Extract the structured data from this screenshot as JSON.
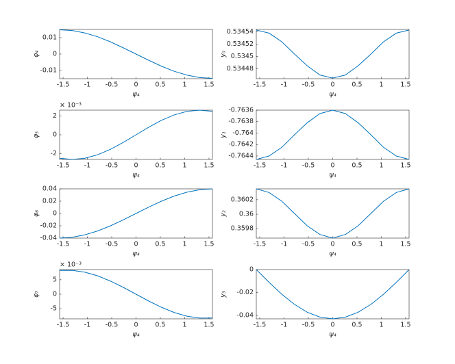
{
  "chart_data": [
    {
      "type": "line",
      "ylabel": "φ₄",
      "xlabel": "ψ₄",
      "color": "#0072bd",
      "x": [
        -1.5708,
        -1.309,
        -1.0472,
        -0.7854,
        -0.5236,
        -0.2618,
        0,
        0.2618,
        0.5236,
        0.7854,
        1.0472,
        1.309,
        1.5708
      ],
      "values": [
        0.0148,
        0.0143,
        0.0128,
        0.0105,
        0.0074,
        0.0038,
        0,
        -0.0038,
        -0.0074,
        -0.0105,
        -0.0128,
        -0.0143,
        -0.0148
      ],
      "xlim": [
        -1.5708,
        1.5708
      ],
      "xticks": [
        -1.5,
        -1,
        -0.5,
        0,
        0.5,
        1,
        1.5
      ],
      "ylim": [
        -0.015,
        0.015
      ],
      "yticks": [
        -0.01,
        0,
        0.01
      ]
    },
    {
      "type": "line",
      "ylabel": "y₀",
      "xlabel": "ψ₄",
      "color": "#0072bd",
      "x": [
        -1.5708,
        -1.309,
        -1.0472,
        -0.7854,
        -0.5236,
        -0.2618,
        0,
        0.2618,
        0.5236,
        0.7854,
        1.0472,
        1.309,
        1.5708
      ],
      "values": [
        0.534543,
        0.534538,
        0.534524,
        0.534504,
        0.534485,
        0.53447,
        0.534465,
        0.53447,
        0.534485,
        0.534504,
        0.534524,
        0.534538,
        0.534543
      ],
      "xlim": [
        -1.5708,
        1.5708
      ],
      "xticks": [
        -1.5,
        -1,
        -0.5,
        0,
        0.5,
        1,
        1.5
      ],
      "ylim": [
        0.534464,
        0.534544
      ],
      "yticks": [
        0.53448,
        0.5345,
        0.53452,
        0.53454
      ]
    },
    {
      "type": "line",
      "ylabel": "φ₅",
      "xlabel": "ψ₄",
      "color": "#0072bd",
      "y_exponent": "× 10⁻³",
      "x": [
        -1.5708,
        -1.309,
        -1.0472,
        -0.7854,
        -0.5236,
        -0.2618,
        0,
        0.2618,
        0.5236,
        0.7854,
        1.0472,
        1.309,
        1.5708
      ],
      "values": [
        -2.47,
        -2.6,
        -2.47,
        -2.1,
        -1.53,
        -0.8,
        0,
        0.8,
        1.53,
        2.1,
        2.47,
        2.6,
        2.47
      ],
      "xlim": [
        -1.5708,
        1.5708
      ],
      "xticks": [
        -1.5,
        -1,
        -0.5,
        0,
        0.5,
        1,
        1.5
      ],
      "ylim": [
        -2.6,
        2.6
      ],
      "yticks": [
        -2,
        0,
        2
      ]
    },
    {
      "type": "line",
      "ylabel": "y₁",
      "xlabel": "ψ₄",
      "color": "#0072bd",
      "x": [
        -1.5708,
        -1.309,
        -1.0472,
        -0.7854,
        -0.5236,
        -0.2618,
        0,
        0.2618,
        0.5236,
        0.7854,
        1.0472,
        1.309,
        1.5708
      ],
      "values": [
        -0.76446,
        -0.7644,
        -0.76425,
        -0.76403,
        -0.76382,
        -0.76366,
        -0.7636,
        -0.76366,
        -0.76382,
        -0.76403,
        -0.76425,
        -0.7644,
        -0.76446
      ],
      "xlim": [
        -1.5708,
        1.5708
      ],
      "xticks": [
        -1.5,
        -1,
        -0.5,
        0,
        0.5,
        1,
        1.5
      ],
      "ylim": [
        -0.76446,
        -0.7636
      ],
      "yticks": [
        -0.7644,
        -0.7642,
        -0.764,
        -0.7638,
        -0.7636
      ]
    },
    {
      "type": "line",
      "ylabel": "φ₆",
      "xlabel": "ψ₄",
      "color": "#0072bd",
      "x": [
        -1.5708,
        -1.309,
        -1.0472,
        -0.7854,
        -0.5236,
        -0.2618,
        0,
        0.2618,
        0.5236,
        0.7854,
        1.0472,
        1.309,
        1.5708
      ],
      "values": [
        -0.04,
        -0.0386,
        -0.0346,
        -0.0283,
        -0.02,
        -0.0104,
        0,
        0.0104,
        0.02,
        0.0283,
        0.0346,
        0.0386,
        0.04
      ],
      "xlim": [
        -1.5708,
        1.5708
      ],
      "xticks": [
        -1.5,
        -1,
        -0.5,
        0,
        0.5,
        1,
        1.5
      ],
      "ylim": [
        -0.04,
        0.04
      ],
      "yticks": [
        -0.04,
        -0.02,
        0,
        0.02,
        0.04
      ]
    },
    {
      "type": "line",
      "ylabel": "y₂",
      "xlabel": "ψ₄",
      "color": "#0072bd",
      "x": [
        -1.5708,
        -1.309,
        -1.0472,
        -0.7854,
        -0.5236,
        -0.2618,
        0,
        0.2618,
        0.5236,
        0.7854,
        1.0472,
        1.309,
        1.5708
      ],
      "values": [
        0.36035,
        0.3603,
        0.36018,
        0.36001,
        0.35984,
        0.35972,
        0.35967,
        0.35972,
        0.35984,
        0.36001,
        0.36018,
        0.3603,
        0.36035
      ],
      "xlim": [
        -1.5708,
        1.5708
      ],
      "xticks": [
        -1.5,
        -1,
        -0.5,
        0,
        0.5,
        1,
        1.5
      ],
      "ylim": [
        0.35967,
        0.36035
      ],
      "yticks": [
        0.3598,
        0.36,
        0.3602
      ]
    },
    {
      "type": "line",
      "ylabel": "φ₇",
      "xlabel": "ψ₄",
      "color": "#0072bd",
      "y_exponent": "× 10⁻³",
      "x": [
        -1.5708,
        -1.309,
        -1.0472,
        -0.7854,
        -0.5236,
        -0.2618,
        0,
        0.2618,
        0.5236,
        0.7854,
        1.0472,
        1.309,
        1.5708
      ],
      "values": [
        8.2,
        8.23,
        7.59,
        6.31,
        4.52,
        2.36,
        0,
        -2.36,
        -4.52,
        -6.31,
        -7.59,
        -8.23,
        -8.2
      ],
      "xlim": [
        -1.5708,
        1.5708
      ],
      "xticks": [
        -1.5,
        -1,
        -0.5,
        0,
        0.5,
        1,
        1.5
      ],
      "ylim": [
        -8.5,
        8.5
      ],
      "yticks": [
        -5,
        0,
        5
      ]
    },
    {
      "type": "line",
      "ylabel": "y₃",
      "xlabel": "ψ₄",
      "color": "#0072bd",
      "x": [
        -1.5708,
        -1.309,
        -1.0472,
        -0.7854,
        -0.5236,
        -0.2618,
        0,
        0.2618,
        0.5236,
        0.7854,
        1.0472,
        1.309,
        1.5708
      ],
      "values": [
        0,
        -0.0111,
        -0.0215,
        -0.0304,
        -0.0372,
        -0.0415,
        -0.043,
        -0.0415,
        -0.0372,
        -0.0304,
        -0.0215,
        -0.0111,
        0
      ],
      "xlim": [
        -1.5708,
        1.5708
      ],
      "xticks": [
        -1.5,
        -1,
        -0.5,
        0,
        0.5,
        1,
        1.5
      ],
      "ylim": [
        -0.043,
        0
      ],
      "yticks": [
        -0.04,
        -0.02,
        0
      ]
    }
  ]
}
